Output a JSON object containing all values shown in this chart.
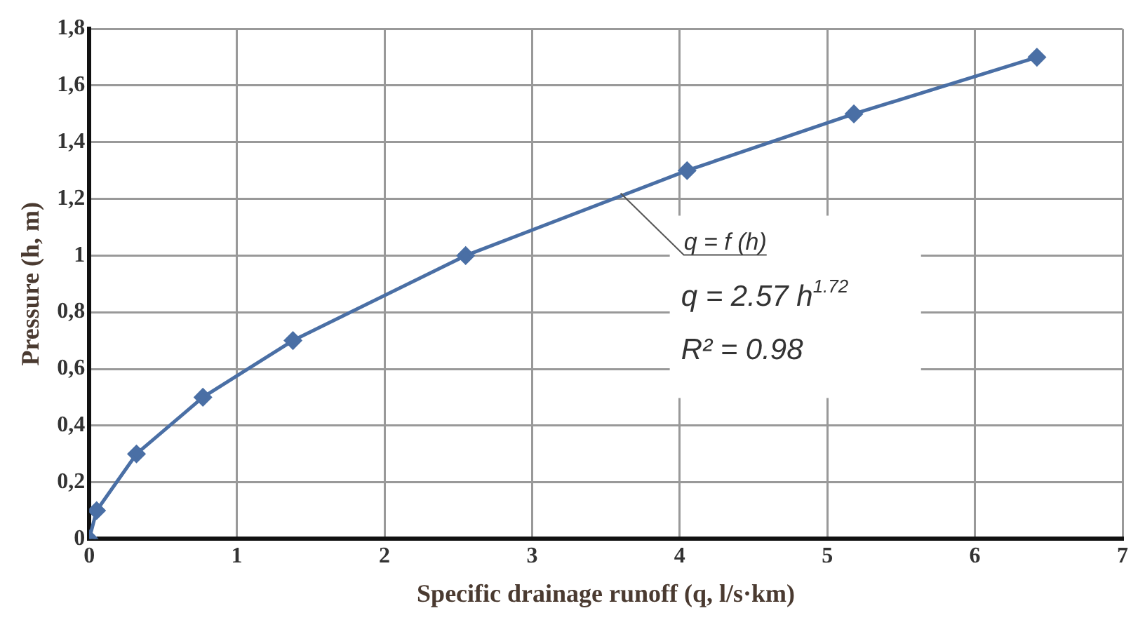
{
  "chart_data": {
    "type": "line",
    "xlabel": "Specific drainage runoff (q, l/s·km)",
    "ylabel": "Pressure (h, m)",
    "x": [
      0,
      0.05,
      0.32,
      0.77,
      1.38,
      2.55,
      4.05,
      5.18,
      6.42
    ],
    "series": [
      {
        "color": "#4a6fa5",
        "values": [
          0,
          0.1,
          0.3,
          0.5,
          0.7,
          1.0,
          1.3,
          1.5,
          1.7
        ]
      }
    ],
    "xlim": [
      0,
      7
    ],
    "xticks": [
      0,
      1,
      2,
      3,
      4,
      5,
      6,
      7
    ],
    "ylim": [
      0,
      1.8
    ],
    "yticks": [
      0,
      {
        "value": 0.2,
        "label": "0,2"
      },
      {
        "value": 0.4,
        "label": "0,4"
      },
      {
        "value": 0.6,
        "label": "0,6"
      },
      {
        "value": 0.8,
        "label": "0,8"
      },
      1,
      {
        "value": 1.2,
        "label": "1,2"
      },
      {
        "value": 1.4,
        "label": "1,4"
      },
      {
        "value": 1.6,
        "label": "1,6"
      },
      {
        "value": 1.8,
        "label": "1,8"
      }
    ],
    "annotations": [
      {
        "text": "q = f (h)",
        "x": 3.6,
        "y": 1.22
      },
      "q = 2.57 h$^{1.72}$",
      "R² = 0.98"
    ],
    "grid": true,
    "legend": false,
    "marker": "diamond",
    "line_style": "solid"
  }
}
